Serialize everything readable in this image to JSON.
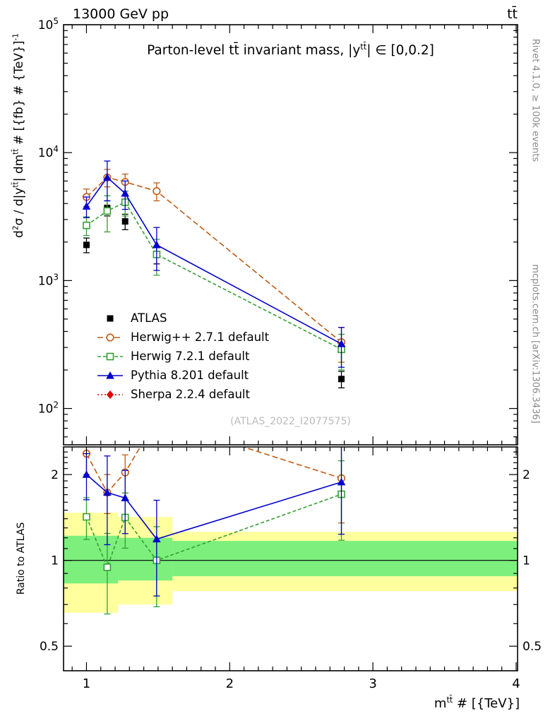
{
  "header": {
    "left": "13000 GeV pp",
    "right": "tt̄"
  },
  "side_notes": {
    "right_top": "Rivet 4.1.0, ≥ 100k events",
    "right_bottom": "mcplots.cern.ch [arXiv:1306.3436]"
  },
  "watermark": "(ATLAS_2022_I2077575)",
  "labels": {
    "title_pre": "Parton-level tt̄ invariant mass, |y",
    "title_sup": "tt̄",
    "title_post": "| ∈ [0,0.2]",
    "y_p1": "d",
    "y_s1": "2",
    "y_p2": "σ / d|y",
    "y_s2": "tt̄",
    "y_p3": "| dm",
    "y_s3": "tt̄",
    "y_p4": " # [{fb} # {TeV}]",
    "y_s4": "-1",
    "x_p1": "m",
    "x_s1": "tt̄",
    "x_p2": " # [{TeV}]",
    "ratio_y": "Ratio to ATLAS"
  },
  "chart_data": {
    "type": "line",
    "title": "Parton-level tt invariant mass, |y^tt| in [0,0.2]",
    "xlabel": "m^tt # [{TeV}]",
    "ylabel": "d2σ / d|y^tt| dm^tt # [{fb} # {TeV}]^-1",
    "ratio_label": "Ratio to ATLAS",
    "xlim": [
      0.84,
      4.01
    ],
    "ylim_main": [
      52,
      100000
    ],
    "ylim_ratio": [
      0.41,
      2.5
    ],
    "x_ticks": [
      1,
      2,
      3,
      4
    ],
    "y_tick_exponents": [
      2,
      3,
      4,
      5
    ],
    "ratio_ticks": [
      0.5,
      1,
      2
    ],
    "x": [
      1.0,
      1.145,
      1.27,
      1.49,
      2.78
    ],
    "series": [
      {
        "name": "ATLAS",
        "color": "#000000",
        "marker": "square-filled",
        "line": "none",
        "values": [
          1900,
          3700,
          2900,
          1600,
          170
        ],
        "yerr": [
          250,
          500,
          400,
          250,
          25
        ]
      },
      {
        "name": "Herwig++ 2.7.1 default",
        "color": "#bf5b16",
        "marker": "circle-open",
        "line": "dash-long",
        "values": [
          4500,
          6400,
          5900,
          5000,
          330
        ],
        "yerr": [
          700,
          1000,
          900,
          800,
          100
        ]
      },
      {
        "name": "Herwig 7.2.1 default",
        "color": "#33a033",
        "marker": "square-open",
        "line": "dash",
        "values": [
          2700,
          3500,
          4100,
          1600,
          290
        ],
        "yerr": [
          450,
          1100,
          900,
          500,
          90
        ]
      },
      {
        "name": "Pythia 8.201 default",
        "color": "#0000cc",
        "marker": "triangle-filled",
        "line": "solid",
        "values": [
          3800,
          6400,
          4800,
          1900,
          320
        ],
        "yerr": [
          700,
          2200,
          1200,
          700,
          110
        ]
      },
      {
        "name": "Sherpa 2.2.4 default",
        "color": "#e00000",
        "marker": "diamond-filled",
        "line": "dot",
        "values": [],
        "yerr": []
      }
    ],
    "ratio_reference": "ATLAS",
    "ratio_bands": [
      {
        "x0": 0.84,
        "x1": 1.22,
        "outer": [
          0.655,
          1.47
        ],
        "inner": [
          0.83,
          1.22
        ]
      },
      {
        "x0": 1.22,
        "x1": 1.6,
        "outer": [
          0.7,
          1.42
        ],
        "inner": [
          0.85,
          1.2
        ]
      },
      {
        "x0": 1.6,
        "x1": 4.01,
        "outer": [
          0.78,
          1.26
        ],
        "inner": [
          0.88,
          1.17
        ]
      }
    ],
    "band_colors": {
      "outer": "#ffff9e",
      "inner": "#7def7d"
    },
    "legend_position": "inside-main-bottom-left",
    "grid": false
  }
}
